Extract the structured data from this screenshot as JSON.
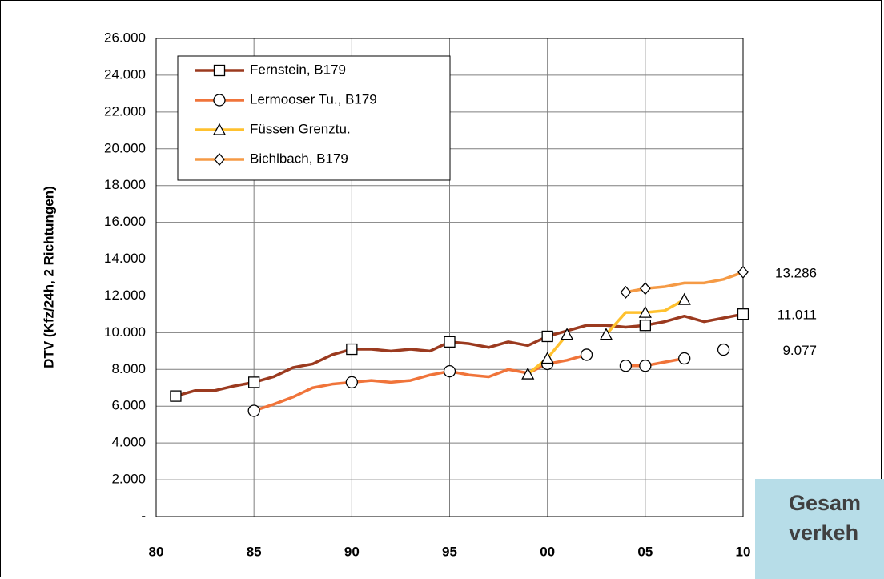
{
  "chart_data": {
    "type": "line",
    "y_label": "DTV (Kfz/24h, 2 Richtungen)",
    "x": [
      1981,
      1982,
      1983,
      1984,
      1985,
      1986,
      1987,
      1988,
      1989,
      1990,
      1991,
      1992,
      1993,
      1994,
      1995,
      1996,
      1997,
      1998,
      1999,
      2000,
      2001,
      2002,
      2003,
      2004,
      2005,
      2006,
      2007,
      2008,
      2009,
      2010
    ],
    "xlim": [
      1980,
      2010
    ],
    "xticks": [
      {
        "value": 1980,
        "label": "80"
      },
      {
        "value": 1985,
        "label": "85"
      },
      {
        "value": 1990,
        "label": "90"
      },
      {
        "value": 1995,
        "label": "95"
      },
      {
        "value": 2000,
        "label": "00"
      },
      {
        "value": 2005,
        "label": "05"
      },
      {
        "value": 2010,
        "label": "10"
      }
    ],
    "ylim": [
      0,
      26000
    ],
    "yticks": [
      {
        "value": 0,
        "label": "-"
      },
      {
        "value": 2000,
        "label": "2.000"
      },
      {
        "value": 4000,
        "label": "4.000"
      },
      {
        "value": 6000,
        "label": "6.000"
      },
      {
        "value": 8000,
        "label": "8.000"
      },
      {
        "value": 10000,
        "label": "10.000"
      },
      {
        "value": 12000,
        "label": "12.000"
      },
      {
        "value": 14000,
        "label": "14.000"
      },
      {
        "value": 16000,
        "label": "16.000"
      },
      {
        "value": 18000,
        "label": "18.000"
      },
      {
        "value": 20000,
        "label": "20.000"
      },
      {
        "value": 22000,
        "label": "22.000"
      },
      {
        "value": 24000,
        "label": "24.000"
      },
      {
        "value": 26000,
        "label": "26.000"
      }
    ],
    "grid": true,
    "legend": "upper left",
    "series": [
      {
        "name": "Fernstein, B179",
        "color": "#9b3a1f",
        "marker": "square",
        "values": [
          6550,
          6850,
          6850,
          7100,
          7300,
          7600,
          8100,
          8300,
          8800,
          9100,
          9100,
          9000,
          9100,
          9000,
          9500,
          9400,
          9200,
          9500,
          9300,
          9800,
          10100,
          10400,
          10400,
          10300,
          10400,
          10600,
          10900,
          10600,
          10800,
          11011
        ],
        "value_labels": [
          null,
          null,
          null,
          null,
          null,
          null,
          null,
          null,
          null,
          null,
          null,
          null,
          null,
          null,
          null,
          null,
          null,
          null,
          null,
          null,
          null,
          null,
          null,
          null,
          null,
          null,
          null,
          null,
          null,
          "11.011"
        ]
      },
      {
        "name": "Lermooser Tu., B179",
        "color": "#f0743a",
        "marker": "circle",
        "values": [
          null,
          null,
          null,
          null,
          5750,
          6100,
          6500,
          7000,
          7200,
          7300,
          7400,
          7300,
          7400,
          7700,
          7900,
          7700,
          7600,
          8000,
          7800,
          8300,
          8500,
          8800,
          null,
          8200,
          8200,
          8400,
          8600,
          null,
          9077,
          null
        ],
        "value_labels": [
          null,
          null,
          null,
          null,
          null,
          null,
          null,
          null,
          null,
          null,
          null,
          null,
          null,
          null,
          null,
          null,
          null,
          null,
          null,
          null,
          null,
          null,
          null,
          null,
          null,
          null,
          null,
          null,
          "9.077",
          null
        ]
      },
      {
        "name": "Füssen Grenztu.",
        "color": "#ffc12e",
        "marker": "triangle",
        "values": [
          null,
          null,
          null,
          null,
          null,
          null,
          null,
          null,
          null,
          null,
          null,
          null,
          null,
          null,
          null,
          null,
          null,
          null,
          7750,
          8600,
          9900,
          null,
          9900,
          11100,
          11100,
          11200,
          11800,
          null,
          null,
          null
        ]
      },
      {
        "name": "Bichlbach, B179",
        "color": "#f59a45",
        "marker": "diamond",
        "values": [
          null,
          null,
          null,
          null,
          null,
          null,
          null,
          null,
          null,
          null,
          null,
          null,
          null,
          null,
          null,
          null,
          null,
          null,
          null,
          null,
          null,
          null,
          null,
          12200,
          12400,
          12500,
          12700,
          12700,
          12900,
          13286
        ],
        "value_labels": [
          null,
          null,
          null,
          null,
          null,
          null,
          null,
          null,
          null,
          null,
          null,
          null,
          null,
          null,
          null,
          null,
          null,
          null,
          null,
          null,
          null,
          null,
          null,
          null,
          null,
          null,
          null,
          null,
          null,
          "13.286"
        ]
      }
    ],
    "annotations": [
      "Gesam",
      "verkeh"
    ]
  }
}
